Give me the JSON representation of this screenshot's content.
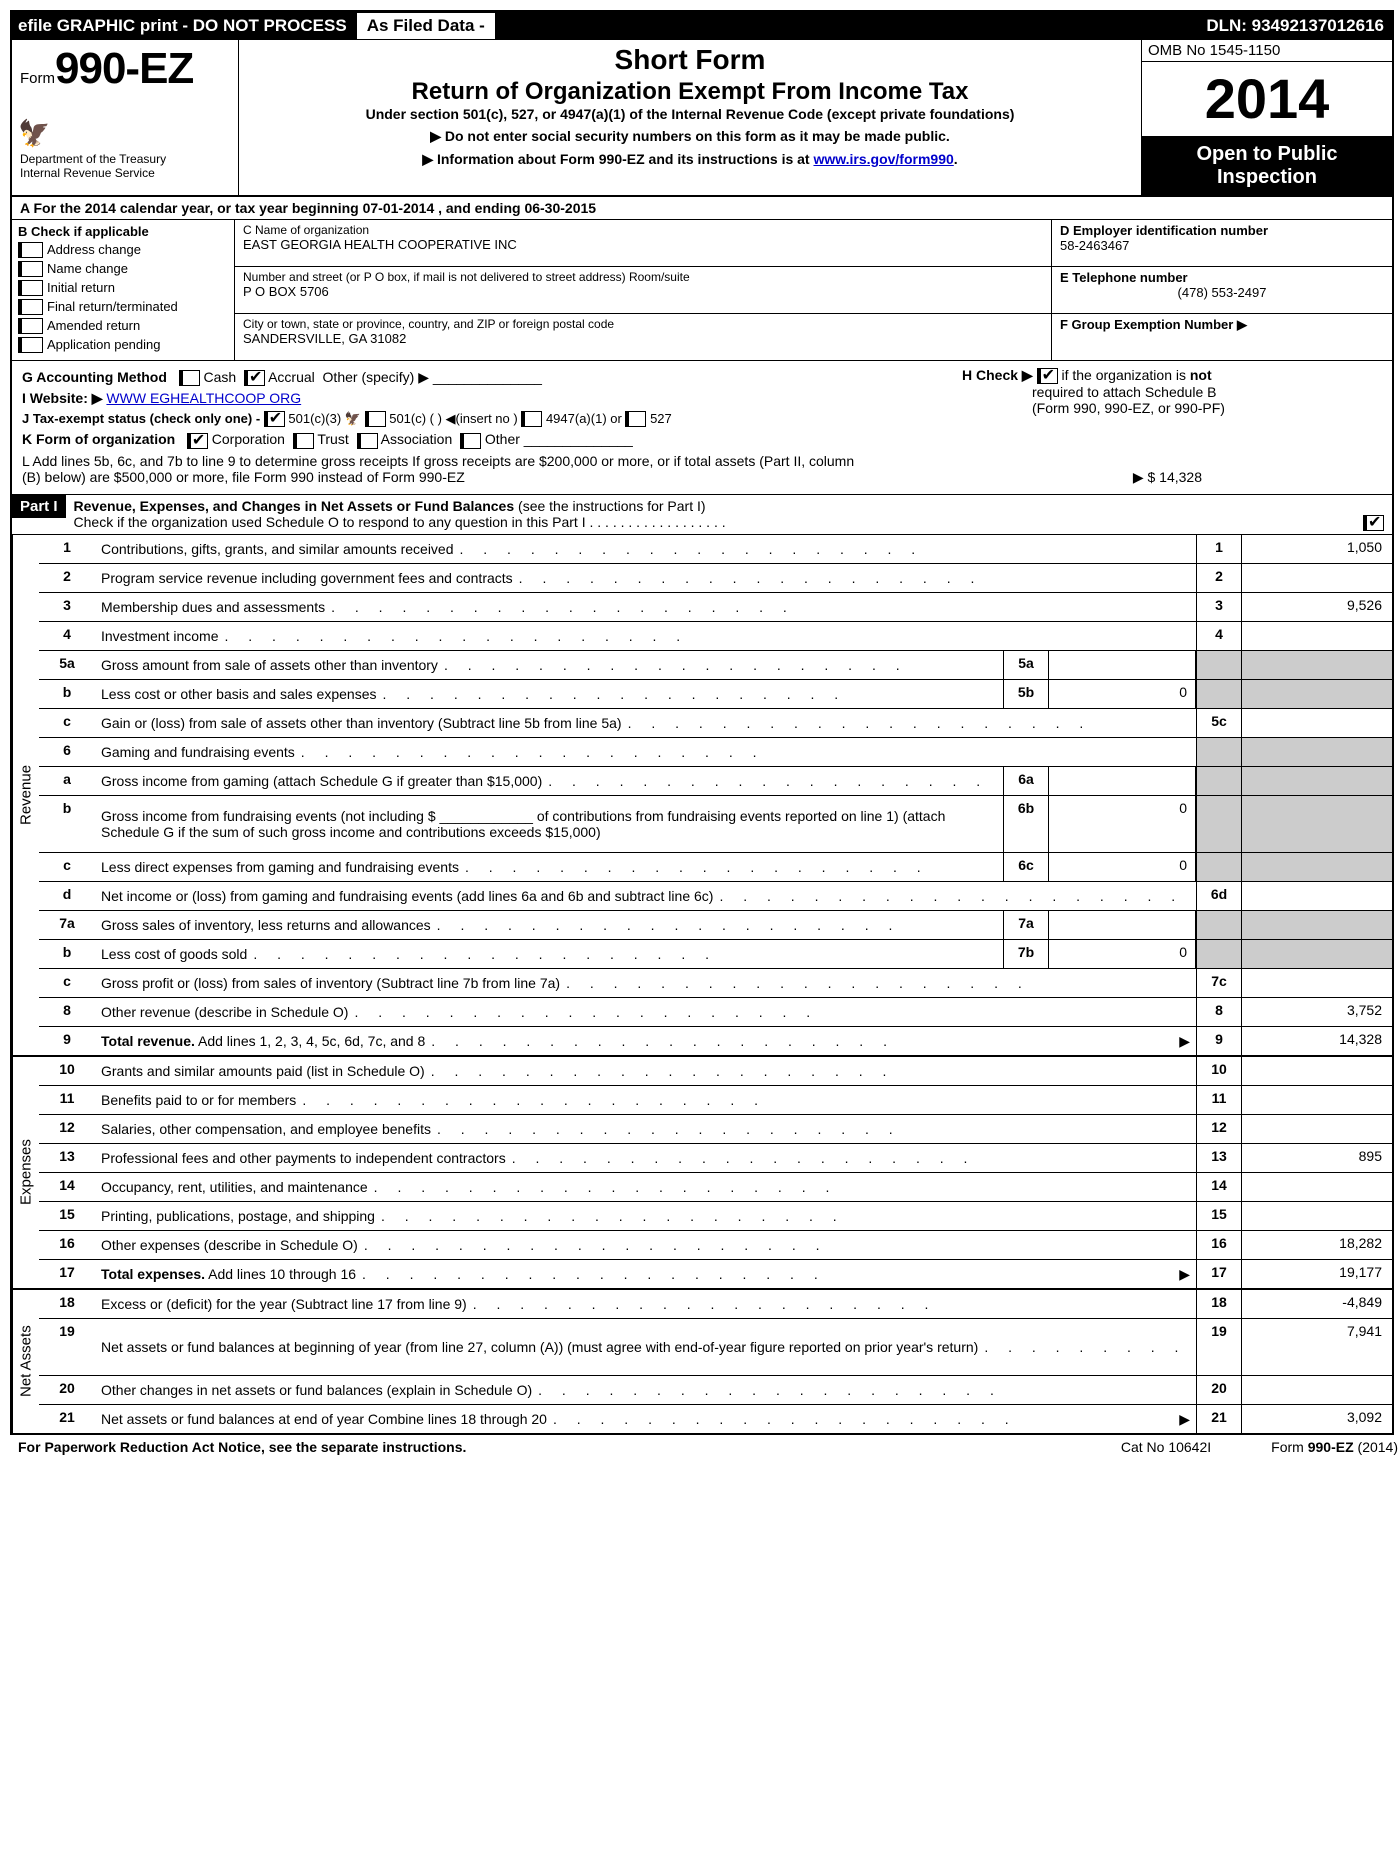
{
  "topbar": {
    "left": "efile GRAPHIC print - DO NOT PROCESS",
    "mid": "As Filed Data -",
    "dln": "DLN: 93492137012616"
  },
  "header": {
    "form_prefix": "Form",
    "form_no": "990-EZ",
    "dept1": "Department of the Treasury",
    "dept2": "Internal Revenue Service",
    "short": "Short Form",
    "title": "Return of Organization Exempt From Income Tax",
    "subtitle": "Under section 501(c), 527, or 4947(a)(1) of the Internal Revenue Code (except private foundations)",
    "arrow1": "▶ Do not enter social security numbers on this form as it may be made public.",
    "arrow2_pre": "▶ Information about Form 990-EZ and its instructions is at ",
    "arrow2_link": "www.irs.gov/form990",
    "omb": "OMB No 1545-1150",
    "year": "2014",
    "open1": "Open to Public",
    "open2": "Inspection"
  },
  "line_a": "A  For the 2014 calendar year, or tax year beginning 07-01-2014              , and ending 06-30-2015",
  "col_b": {
    "title": "B  Check if applicable",
    "items": [
      "Address change",
      "Name change",
      "Initial return",
      "Final return/terminated",
      "Amended return",
      "Application pending"
    ]
  },
  "col_c": {
    "name_label": "C Name of organization",
    "name": "EAST GEORGIA HEALTH COOPERATIVE INC",
    "street_label": "Number and street (or P  O  box, if mail is not delivered to street address) Room/suite",
    "street": "P O BOX 5706",
    "city_label": "City or town, state or province, country, and ZIP or foreign postal code",
    "city": "SANDERSVILLE, GA  31082"
  },
  "col_def": {
    "d_label": "D Employer identification number",
    "d_val": "58-2463467",
    "e_label": "E Telephone number",
    "e_val": "(478) 553-2497",
    "f_label": "F Group Exemption Number    ▶"
  },
  "info": {
    "g": "G Accounting Method",
    "g_cash": "Cash",
    "g_accrual": "Accrual",
    "g_other": "Other (specify) ▶",
    "h": "H  Check ▶",
    "h_text1": "if the organization is ",
    "h_not": "not",
    "h_text2": "required to attach Schedule B",
    "h_text3": "(Form 990, 990-EZ, or 990-PF)",
    "i": "I Website: ▶",
    "i_val": "WWW EGHEALTHCOOP ORG",
    "j": "J Tax-exempt status (check only one) -",
    "j1": "501(c)(3)",
    "j2": "501(c) (   ) ◀(insert no )",
    "j3": "4947(a)(1) or",
    "j4": "527",
    "k": "K Form of organization",
    "k1": "Corporation",
    "k2": "Trust",
    "k3": "Association",
    "k4": "Other",
    "l1": "L Add lines 5b, 6c, and 7b to line 9 to determine gross receipts  If gross receipts are $200,000 or more, or if total assets (Part II, column",
    "l2": "(B) below) are $500,000 or more, file Form 990 instead of Form 990-EZ",
    "l_val": "▶ $ 14,328"
  },
  "part1": {
    "label": "Part I",
    "title": "Revenue, Expenses, and Changes in Net Assets or Fund Balances",
    "title_note": "(see the instructions for Part I)",
    "check_line": "Check if the organization used Schedule O to respond to any question in this Part I  .  .  .  .  .  .  .  .  .  .  .  .  .  .  .  .  .  ."
  },
  "sections": {
    "revenue": "Revenue",
    "expenses": "Expenses",
    "netassets": "Net Assets"
  },
  "lines": [
    {
      "n": "1",
      "desc": "Contributions, gifts, grants, and similar amounts received",
      "end": "1",
      "val": "1,050"
    },
    {
      "n": "2",
      "desc": "Program service revenue including government fees and contracts",
      "end": "2",
      "val": ""
    },
    {
      "n": "3",
      "desc": "Membership dues and assessments",
      "end": "3",
      "val": "9,526"
    },
    {
      "n": "4",
      "desc": "Investment income",
      "end": "4",
      "val": ""
    },
    {
      "n": "5a",
      "desc": "Gross amount from sale of assets other than inventory",
      "mini": "5a",
      "minival": "",
      "grey": true
    },
    {
      "n": "b",
      "desc": "Less  cost or other basis and sales expenses",
      "mini": "5b",
      "minival": "0",
      "grey": true
    },
    {
      "n": "c",
      "desc": "Gain or (loss) from sale of assets other than inventory (Subtract line 5b from line 5a)",
      "end": "5c",
      "val": ""
    },
    {
      "n": "6",
      "desc": "Gaming and fundraising events",
      "grey": true,
      "noend": true
    },
    {
      "n": "a",
      "desc": "Gross income from gaming (attach Schedule G if greater than $15,000)",
      "mini": "6a",
      "minival": "",
      "grey": true
    },
    {
      "n": "b",
      "desc": "Gross income from fundraising events (not including $ ____________ of contributions from fundraising events reported on line 1) (attach Schedule G if the sum of such gross income and contributions exceeds $15,000)",
      "mini": "6b",
      "minival": "0",
      "grey": true,
      "tall": true
    },
    {
      "n": "c",
      "desc": "Less  direct expenses from gaming and fundraising events",
      "mini": "6c",
      "minival": "0",
      "grey": true
    },
    {
      "n": "d",
      "desc": "Net income or (loss) from gaming and fundraising events (add lines 6a and 6b and subtract line 6c)",
      "end": "6d",
      "val": ""
    },
    {
      "n": "7a",
      "desc": "Gross sales of inventory, less returns and allowances",
      "mini": "7a",
      "minival": "",
      "grey": true
    },
    {
      "n": "b",
      "desc": "Less  cost of goods sold",
      "mini": "7b",
      "minival": "0",
      "grey": true
    },
    {
      "n": "c",
      "desc": "Gross profit or (loss) from sales of inventory (Subtract line 7b from line 7a)",
      "end": "7c",
      "val": ""
    },
    {
      "n": "8",
      "desc": "Other revenue (describe in Schedule O)",
      "end": "8",
      "val": "3,752"
    },
    {
      "n": "9",
      "desc": "Total revenue. Add lines 1, 2, 3, 4, 5c, 6d, 7c, and 8",
      "end": "9",
      "val": "14,328",
      "bold": true,
      "arrow": true
    }
  ],
  "exp_lines": [
    {
      "n": "10",
      "desc": "Grants and similar amounts paid (list in Schedule O)",
      "end": "10",
      "val": ""
    },
    {
      "n": "11",
      "desc": "Benefits paid to or for members",
      "end": "11",
      "val": ""
    },
    {
      "n": "12",
      "desc": "Salaries, other compensation, and employee benefits",
      "end": "12",
      "val": ""
    },
    {
      "n": "13",
      "desc": "Professional fees and other payments to independent contractors",
      "end": "13",
      "val": "895"
    },
    {
      "n": "14",
      "desc": "Occupancy, rent, utilities, and maintenance",
      "end": "14",
      "val": ""
    },
    {
      "n": "15",
      "desc": "Printing, publications, postage, and shipping",
      "end": "15",
      "val": ""
    },
    {
      "n": "16",
      "desc": "Other expenses (describe in Schedule O)",
      "end": "16",
      "val": "18,282"
    },
    {
      "n": "17",
      "desc": "Total expenses. Add lines 10 through 16",
      "end": "17",
      "val": "19,177",
      "bold": true,
      "arrow": true
    }
  ],
  "na_lines": [
    {
      "n": "18",
      "desc": "Excess or (deficit) for the year (Subtract line 17 from line 9)",
      "end": "18",
      "val": "-4,849"
    },
    {
      "n": "19",
      "desc": "Net assets or fund balances at beginning of year (from line 27, column (A)) (must agree with end-of-year figure reported on prior year's return)",
      "end": "19",
      "val": "7,941",
      "tall": true
    },
    {
      "n": "20",
      "desc": "Other changes in net assets or fund balances (explain in Schedule O)",
      "end": "20",
      "val": ""
    },
    {
      "n": "21",
      "desc": "Net assets or fund balances at end of year  Combine lines 18 through 20",
      "end": "21",
      "val": "3,092",
      "arrow": true
    }
  ],
  "footer": {
    "left": "For Paperwork Reduction Act Notice, see the separate instructions.",
    "mid": "Cat No  10642I",
    "right": "Form 990-EZ (2014)"
  }
}
